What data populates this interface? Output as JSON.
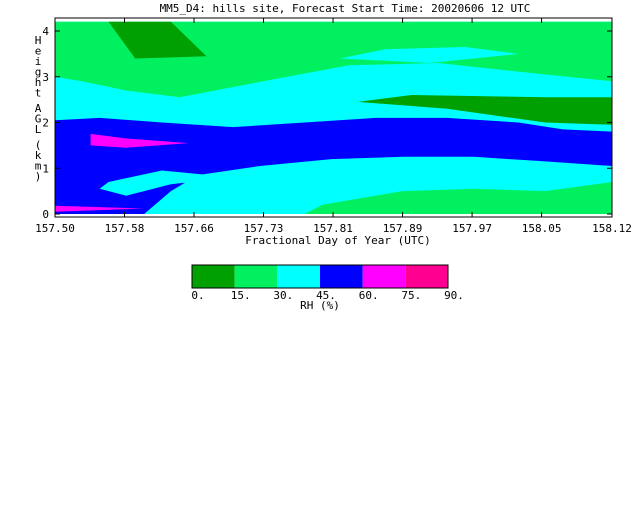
{
  "chart_data": {
    "type": "contour",
    "title": "MM5_D4: hills site,  Forecast Start Time: 20020606 12 UTC",
    "xlabel": "Fractional Day of Year (UTC)",
    "ylabel": "Height AGL (km)",
    "xlim": [
      157.5,
      158.125
    ],
    "ylim": [
      0,
      4.3
    ],
    "x_ticks": [
      "157.50",
      "157.58",
      "157.66",
      "157.73",
      "157.81",
      "157.89",
      "157.97",
      "158.05",
      "158.12"
    ],
    "x_tick_values": [
      157.5,
      157.578,
      157.656,
      157.734,
      157.812,
      157.89,
      157.968,
      158.046,
      158.125
    ],
    "y_ticks": [
      "0",
      "1",
      "2",
      "3",
      "4"
    ],
    "y_tick_values": [
      0,
      1,
      2,
      3,
      4
    ],
    "colorbar": {
      "label": "RH (%)",
      "levels": [
        "0.",
        "15.",
        "30.",
        "45.",
        "60.",
        "75.",
        "90."
      ],
      "colors": [
        "#00a000",
        "#00f060",
        "#00ffff",
        "#0000ff",
        "#ff00ff",
        "#ff0090"
      ]
    },
    "regions": [
      {
        "range": "30-45",
        "color": "#00ffff",
        "points": [
          [
            157.5,
            0
          ],
          [
            158.125,
            0
          ],
          [
            158.125,
            4.2
          ],
          [
            157.5,
            4.2
          ]
        ]
      },
      {
        "range": "15-30",
        "color": "#00f060",
        "points": [
          [
            157.5,
            4.2
          ],
          [
            158.125,
            4.2
          ],
          [
            158.125,
            2.9
          ],
          [
            158.05,
            3.05
          ],
          [
            157.93,
            3.3
          ],
          [
            157.83,
            3.25
          ],
          [
            157.72,
            2.85
          ],
          [
            157.64,
            2.55
          ],
          [
            157.58,
            2.7
          ],
          [
            157.53,
            2.9
          ],
          [
            157.5,
            3.0
          ]
        ]
      },
      {
        "range": "30-45",
        "color": "#00ffff",
        "points": [
          [
            157.82,
            3.4
          ],
          [
            157.87,
            3.6
          ],
          [
            157.96,
            3.65
          ],
          [
            158.02,
            3.5
          ],
          [
            157.92,
            3.3
          ]
        ]
      },
      {
        "range": "0-15",
        "color": "#00a000",
        "points": [
          [
            157.56,
            4.2
          ],
          [
            157.63,
            4.2
          ],
          [
            157.67,
            3.45
          ],
          [
            157.59,
            3.4
          ]
        ]
      },
      {
        "range": "0-15",
        "color": "#00a000",
        "points": [
          [
            157.84,
            2.45
          ],
          [
            157.9,
            2.6
          ],
          [
            158.05,
            2.55
          ],
          [
            158.125,
            2.55
          ],
          [
            158.125,
            1.95
          ],
          [
            158.05,
            2.0
          ],
          [
            157.94,
            2.3
          ]
        ]
      },
      {
        "range": "15-30",
        "color": "#00f060",
        "points": [
          [
            157.78,
            0
          ],
          [
            158.125,
            0
          ],
          [
            158.125,
            0.7
          ],
          [
            158.05,
            0.5
          ],
          [
            157.97,
            0.55
          ],
          [
            157.89,
            0.5
          ],
          [
            157.8,
            0.2
          ]
        ]
      },
      {
        "range": "45-60",
        "color": "#0000ff",
        "points": [
          [
            157.5,
            2.05
          ],
          [
            157.55,
            2.1
          ],
          [
            157.62,
            2.0
          ],
          [
            157.7,
            1.9
          ],
          [
            157.78,
            2.0
          ],
          [
            157.86,
            2.1
          ],
          [
            157.94,
            2.1
          ],
          [
            158.02,
            2.0
          ],
          [
            158.07,
            1.85
          ],
          [
            158.125,
            1.8
          ],
          [
            158.125,
            1.05
          ],
          [
            158.05,
            1.15
          ],
          [
            157.97,
            1.25
          ],
          [
            157.89,
            1.25
          ],
          [
            157.81,
            1.2
          ],
          [
            157.73,
            1.05
          ],
          [
            157.66,
            0.85
          ],
          [
            157.63,
            0.5
          ],
          [
            157.6,
            0
          ],
          [
            157.5,
            0
          ]
        ]
      },
      {
        "range": "30-45",
        "color": "#00ffff",
        "points": [
          [
            157.55,
            0.55
          ],
          [
            157.58,
            0.4
          ],
          [
            157.63,
            0.65
          ],
          [
            157.7,
            0.8
          ],
          [
            157.62,
            0.95
          ],
          [
            157.56,
            0.7
          ]
        ]
      },
      {
        "range": "60-75",
        "color": "#ff00ff",
        "points": [
          [
            157.54,
            1.75
          ],
          [
            157.58,
            1.65
          ],
          [
            157.65,
            1.55
          ],
          [
            157.58,
            1.45
          ],
          [
            157.54,
            1.5
          ]
        ]
      },
      {
        "range": "60-75",
        "color": "#ff00ff",
        "points": [
          [
            157.5,
            0.18
          ],
          [
            157.6,
            0.12
          ],
          [
            157.5,
            0.05
          ]
        ]
      }
    ]
  }
}
